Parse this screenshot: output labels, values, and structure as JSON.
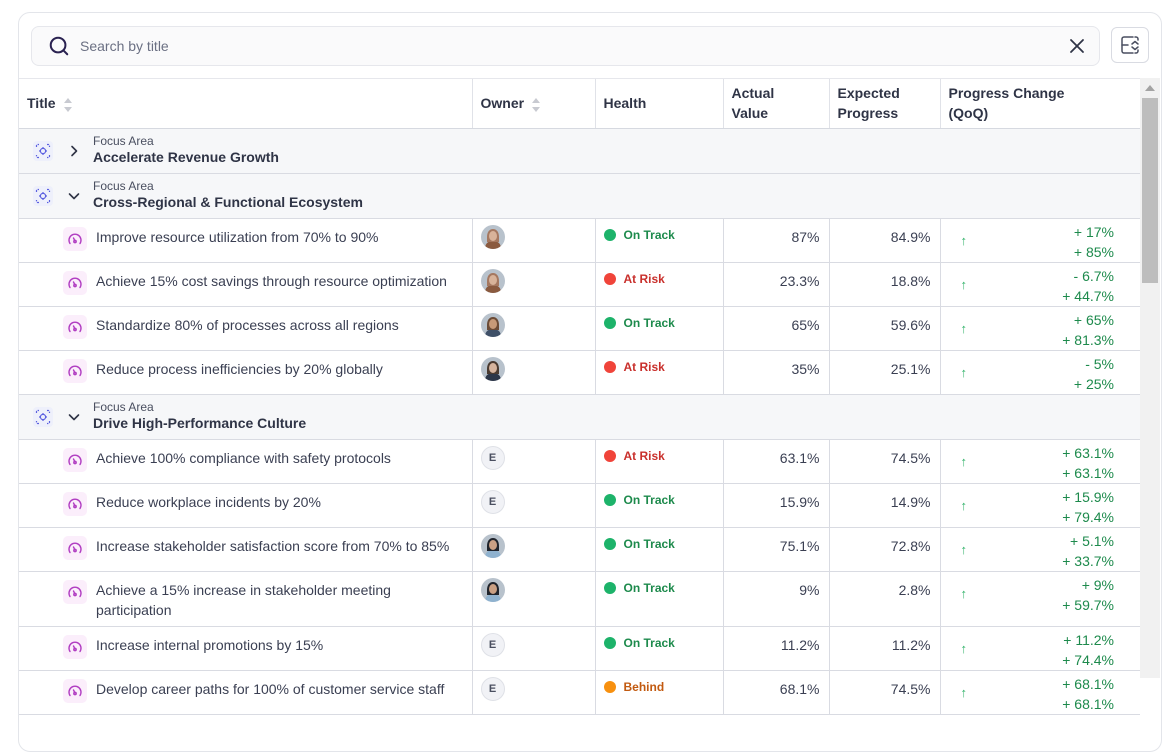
{
  "search": {
    "placeholder": "Search by title",
    "value": ""
  },
  "table": {
    "columns": [
      {
        "label": "Title",
        "sortable": true
      },
      {
        "label": "Owner",
        "sortable": true
      },
      {
        "label": "Health",
        "sortable": false
      },
      {
        "label": "Actual Value",
        "sortable": false
      },
      {
        "label": "Expected Progress",
        "sortable": false
      },
      {
        "label": "Progress Change (QoQ)",
        "sortable": false
      }
    ],
    "groups": [
      {
        "label": "Focus Area",
        "name": "Accelerate Revenue Growth",
        "expanded": false,
        "items": []
      },
      {
        "label": "Focus Area",
        "name": "Cross-Regional & Functional Ecosystem",
        "expanded": true,
        "items": [
          {
            "title": "Improve resource utilization from 70% to 90%",
            "owner": {
              "type": "photo",
              "name": "woman-1"
            },
            "health": "On Track",
            "actual": "87%",
            "expected": "84.9%",
            "change": [
              "+ 17%",
              "+ 85%"
            ]
          },
          {
            "title": "Achieve 15% cost savings through resource optimization",
            "owner": {
              "type": "photo",
              "name": "woman-1"
            },
            "health": "At Risk",
            "actual": "23.3%",
            "expected": "18.8%",
            "change": [
              "- 6.7%",
              "+ 44.7%"
            ]
          },
          {
            "title": "Standardize 80% of processes across all regions",
            "owner": {
              "type": "photo",
              "name": "man-1"
            },
            "health": "On Track",
            "actual": "65%",
            "expected": "59.6%",
            "change": [
              "+ 65%",
              "+ 81.3%"
            ]
          },
          {
            "title": "Reduce process inefficiencies by 20% globally",
            "owner": {
              "type": "photo",
              "name": "woman-2"
            },
            "health": "At Risk",
            "actual": "35%",
            "expected": "25.1%",
            "change": [
              "- 5%",
              "+ 25%"
            ]
          }
        ]
      },
      {
        "label": "Focus Area",
        "name": "Drive High-Performance Culture",
        "expanded": true,
        "items": [
          {
            "title": "Achieve 100% compliance with safety protocols",
            "owner": {
              "type": "initial",
              "name": "E"
            },
            "health": "At Risk",
            "actual": "63.1%",
            "expected": "74.5%",
            "change": [
              "+ 63.1%",
              "+ 63.1%"
            ]
          },
          {
            "title": "Reduce workplace incidents by 20%",
            "owner": {
              "type": "initial",
              "name": "E"
            },
            "health": "On Track",
            "actual": "15.9%",
            "expected": "14.9%",
            "change": [
              "+ 15.9%",
              "+ 79.4%"
            ]
          },
          {
            "title": "Increase stakeholder satisfaction score from 70% to 85%",
            "owner": {
              "type": "photo",
              "name": "woman-3"
            },
            "health": "On Track",
            "actual": "75.1%",
            "expected": "72.8%",
            "change": [
              "+ 5.1%",
              "+ 33.7%"
            ]
          },
          {
            "title": "Achieve a 15% increase in stakeholder meeting participation",
            "owner": {
              "type": "photo",
              "name": "woman-3"
            },
            "health": "On Track",
            "actual": "9%",
            "expected": "2.8%",
            "change": [
              "+ 9%",
              "+ 59.7%"
            ]
          },
          {
            "title": "Increase internal promotions by 15%",
            "owner": {
              "type": "initial",
              "name": "E"
            },
            "health": "On Track",
            "actual": "11.2%",
            "expected": "11.2%",
            "change": [
              "+ 11.2%",
              "+ 74.4%"
            ]
          },
          {
            "title": "Develop career paths for 100% of customer service staff",
            "owner": {
              "type": "initial",
              "name": "E"
            },
            "health": "Behind",
            "actual": "68.1%",
            "expected": "74.5%",
            "change": [
              "+ 68.1%",
              "+ 68.1%"
            ]
          }
        ]
      }
    ]
  },
  "health_colors": {
    "On Track": {
      "dot": "#1db36a",
      "text": "#1d8a4c"
    },
    "At Risk": {
      "dot": "#f0443a",
      "text": "#c9302c"
    },
    "Behind": {
      "dot": "#f7900f",
      "text": "#c25a10"
    }
  },
  "icons": {
    "search": "search-icon",
    "clear": "close-icon",
    "collapse_all": "collapse-rows-icon",
    "focus_area": "target-icon",
    "key_result": "gauge-icon",
    "trend": "arrow-up-icon"
  }
}
